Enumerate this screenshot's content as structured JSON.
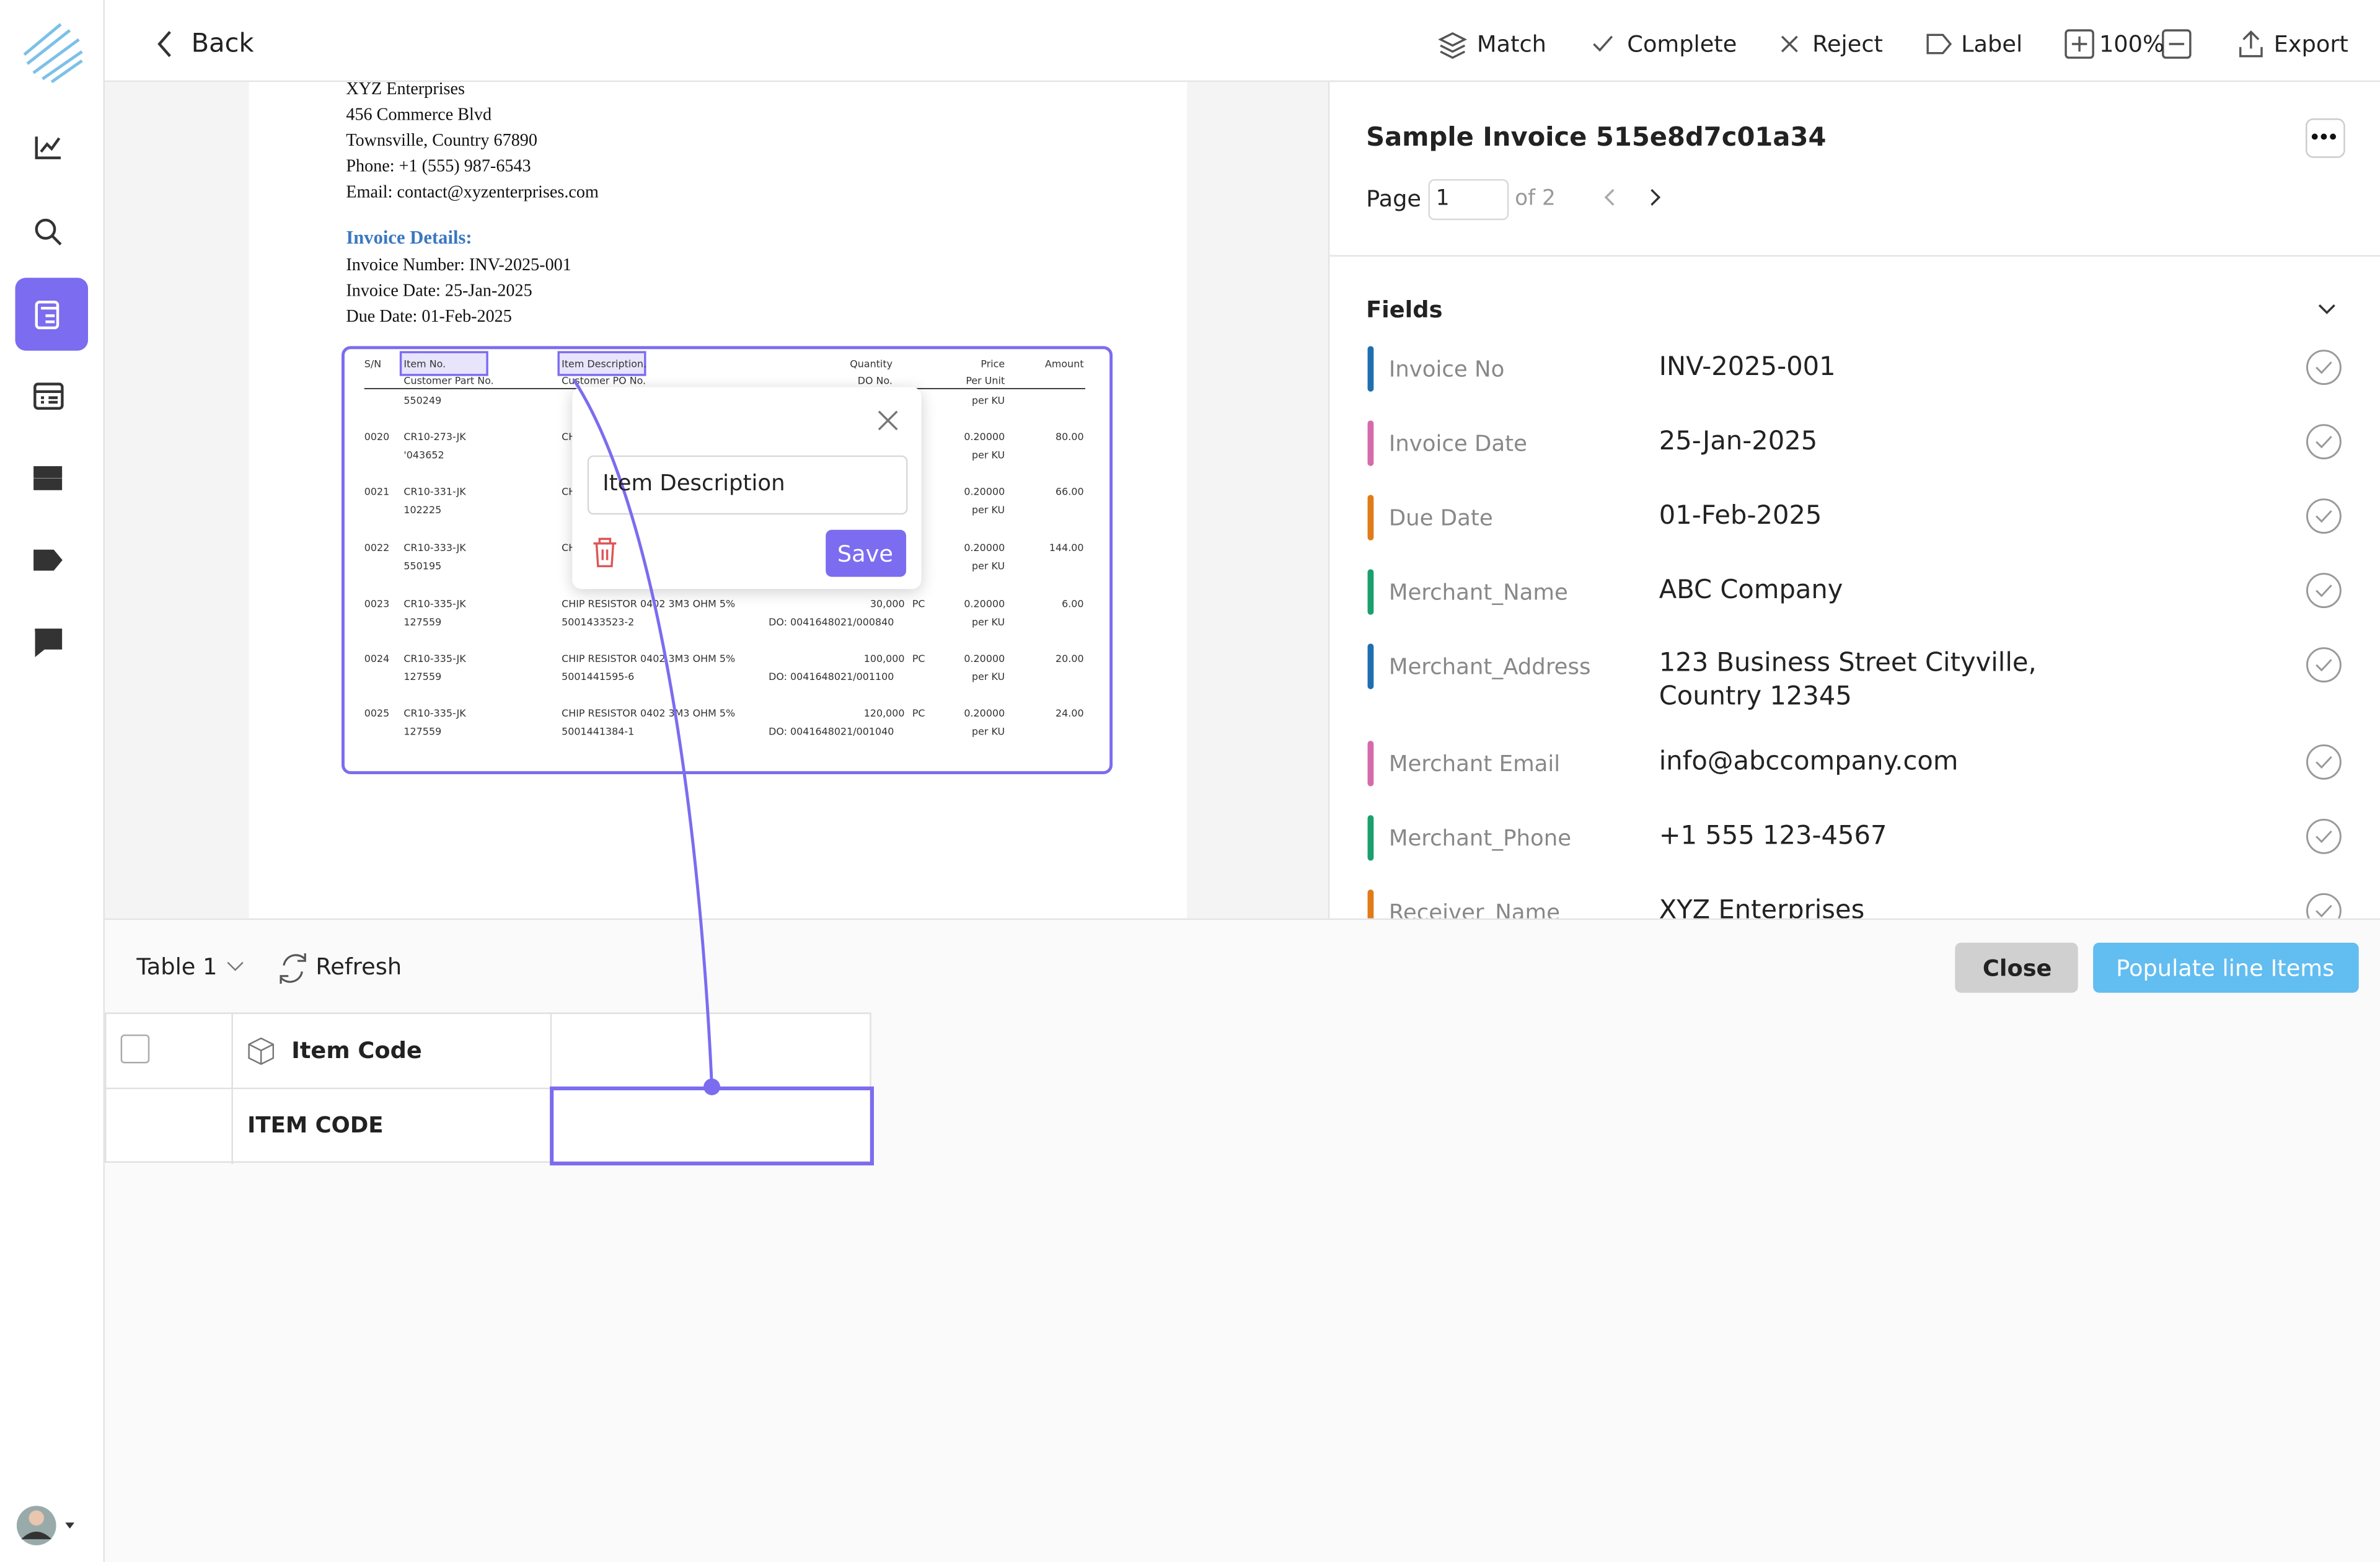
{
  "toolbar": {
    "back": "Back",
    "actions": [
      "Match",
      "Complete",
      "Reject",
      "Label"
    ],
    "zoom": "100%",
    "export": "Export"
  },
  "document": {
    "sender": [
      "XYZ Enterprises",
      "456 Commerce Blvd",
      "Townsville, Country 67890",
      "Phone: +1 (555) 987-6543",
      "Email: contact@xyzenterprises.com"
    ],
    "details_heading": "Invoice Details:",
    "details": [
      "Invoice Number: INV-2025-001",
      "Invoice Date: 25-Jan-2025",
      "Due Date: 01-Feb-2025"
    ],
    "table_headers": {
      "sn": "S/N",
      "item": "Item No.",
      "desc": "Item Description.",
      "qty": "Quantity",
      "price": "Price",
      "amount": "Amount"
    },
    "table_subheaders": {
      "part": "Customer Part No.",
      "po": "Customer PO No.",
      "do": "DO No.",
      "per": "Per Unit"
    },
    "rows": [
      {
        "part": "550249",
        "per": "per KU"
      },
      {
        "sn": "0020",
        "item": "CR10-273-JK",
        "part": "'043652",
        "desc": "CHIP RESISTOR 0402 3M3 OHM 5%",
        "price": "0.20000",
        "per": "per KU",
        "amount": "80.00"
      },
      {
        "sn": "0021",
        "item": "CR10-331-JK",
        "part": "102225",
        "desc": "CHIP RESISTOR 0402 3M3 OHM 5%",
        "price": "0.20000",
        "per": "per KU",
        "amount": "66.00"
      },
      {
        "sn": "0022",
        "item": "CR10-333-JK",
        "part": "550195",
        "desc": "CHIP RESISTOR 0402 3M3 OHM 5%",
        "price": "0.20000",
        "per": "per KU",
        "amount": "144.00"
      },
      {
        "sn": "0023",
        "item": "CR10-335-JK",
        "part": "127559",
        "desc": "CHIP RESISTOR 0402 3M3 OHM 5%",
        "po": "5001433523-2",
        "qty": "30,000",
        "unit": "PC",
        "do": "DO: 0041648021/000840",
        "price": "0.20000",
        "per": "per KU",
        "amount": "6.00"
      },
      {
        "sn": "0024",
        "item": "CR10-335-JK",
        "part": "127559",
        "desc": "CHIP RESISTOR 0402 3M3 OHM 5%",
        "po": "5001441595-6",
        "qty": "100,000",
        "unit": "PC",
        "do": "DO: 0041648021/001100",
        "price": "0.20000",
        "per": "per KU",
        "amount": "20.00"
      },
      {
        "sn": "0025",
        "item": "CR10-335-JK",
        "part": "127559",
        "desc": "CHIP RESISTOR 0402 3M3 OHM 5%",
        "po": "5001441384-1",
        "qty": "120,000",
        "unit": "PC",
        "do": "DO: 0041648021/001040",
        "price": "0.20000",
        "per": "per KU",
        "amount": "24.00"
      }
    ]
  },
  "popup": {
    "input": "Item Description",
    "save": "Save"
  },
  "panel": {
    "title": "Sample Invoice 515e8d7c01a34",
    "page_label": "Page",
    "page_value": "1",
    "page_of": "of 2",
    "fields_heading": "Fields",
    "fields": [
      {
        "label": "Invoice No",
        "value": "INV-2025-001",
        "color": "#1f6fb0"
      },
      {
        "label": "Invoice Date",
        "value": "25-Jan-2025",
        "color": "#d66bab"
      },
      {
        "label": "Due Date",
        "value": "01-Feb-2025",
        "color": "#e07b1a"
      },
      {
        "label": "Merchant_Name",
        "value": "ABC Company",
        "color": "#1aa06d"
      },
      {
        "label": "Merchant_Address",
        "value": "123 Business Street Cityville, Country 12345",
        "color": "#1f6fb0"
      },
      {
        "label": "Merchant Email",
        "value": "info@abccompany.com",
        "color": "#d66bab"
      },
      {
        "label": "Merchant_Phone",
        "value": "+1 555 123-4567",
        "color": "#1aa06d"
      },
      {
        "label": "Receiver_Name",
        "value": "XYZ Enterprises",
        "color": "#e07b1a"
      }
    ]
  },
  "bottom": {
    "table_select": "Table 1",
    "refresh": "Refresh",
    "close": "Close",
    "populate": "Populate line Items",
    "column_header": "Item Code",
    "cell": "ITEM CODE"
  }
}
